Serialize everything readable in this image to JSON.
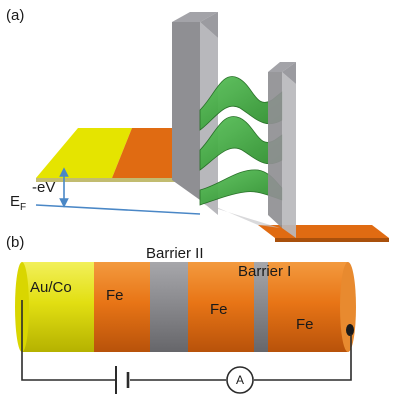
{
  "panel_a": {
    "label": "(a)",
    "voltage_label": "-eV",
    "fermi_label": "E",
    "fermi_subscript": "F"
  },
  "panel_b": {
    "label": "(b)",
    "contact_label": "Au/Co",
    "fe_labels": [
      "Fe",
      "Fe",
      "Fe"
    ],
    "barrier_labels": [
      "Barrier II",
      "Barrier I"
    ],
    "ammeter_label": "A"
  },
  "colors": {
    "yellow_lead": "#e5e400",
    "orange_lead": "#e06b12",
    "barrier_gray": "#8f8f93",
    "wave_green": "#3aa23a",
    "energy_blue": "#4a87c6",
    "wire": "#2b2b2b"
  }
}
